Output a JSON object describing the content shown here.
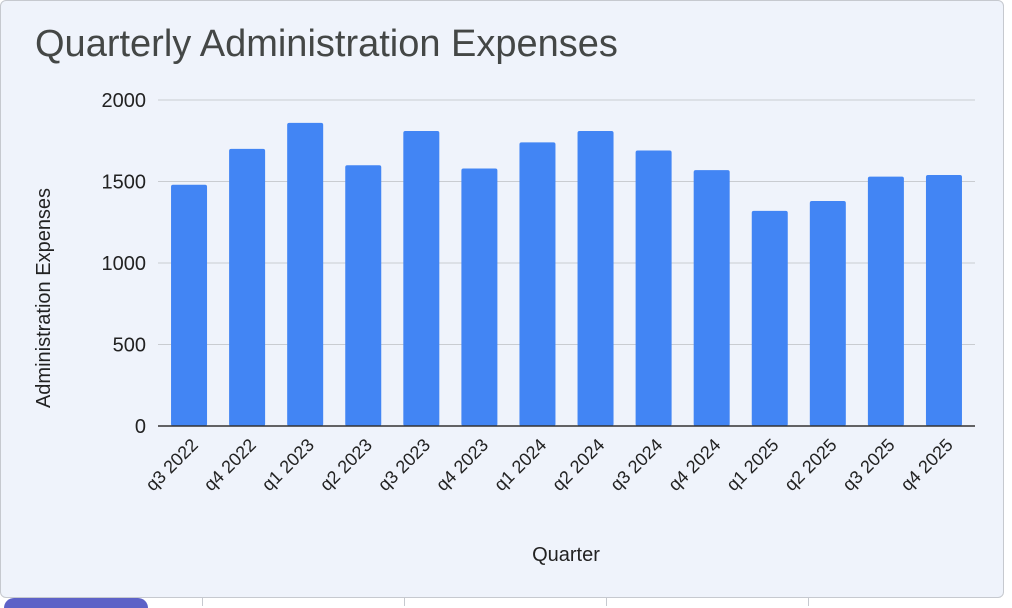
{
  "chart_data": {
    "type": "bar",
    "title": "Quarterly Administration Expenses",
    "xlabel": "Quarter",
    "ylabel": "Administration Expenses",
    "ylim": [
      0,
      2000
    ],
    "yticks": [
      0,
      500,
      1000,
      1500,
      2000
    ],
    "grid": true,
    "categories": [
      "q3 2022",
      "q4 2022",
      "q1 2023",
      "q2 2023",
      "q3 2023",
      "q4 2023",
      "q1 2024",
      "q2 2024",
      "q3 2024",
      "q4 2024",
      "q1 2025",
      "q2 2025",
      "q3 2025",
      "q4 2025"
    ],
    "values": [
      1480,
      1700,
      1860,
      1600,
      1810,
      1580,
      1740,
      1810,
      1690,
      1570,
      1320,
      1380,
      1530,
      1540
    ],
    "bar_color": "#4285f4"
  }
}
